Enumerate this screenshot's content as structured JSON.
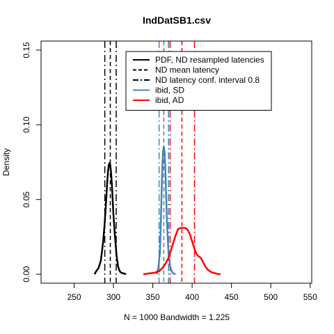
{
  "chart_data": {
    "type": "line",
    "title": "IndDatSB1.csv",
    "xlabel": "N = 1000   Bandwidth = 1.225",
    "ylabel": "Density",
    "xlim": [
      208,
      552
    ],
    "ylim": [
      -0.006,
      0.156
    ],
    "x_ticks": [
      250,
      300,
      350,
      400,
      450,
      500,
      550
    ],
    "x_tick_labels": [
      "250",
      "300",
      "350",
      "400",
      "450",
      "500",
      "550"
    ],
    "y_ticks": [
      0.0,
      0.05,
      0.1,
      0.15
    ],
    "y_tick_labels": [
      "0.00",
      "0.05",
      "0.10",
      "0.15"
    ],
    "legend": {
      "placement": "top-center",
      "entries": [
        {
          "label": "PDF, ND resampled latencies",
          "color": "#000000",
          "style": "solid"
        },
        {
          "label": "ND mean latency",
          "color": "#000000",
          "style": "dashed"
        },
        {
          "label": "ND latency conf. interval 0.8",
          "color": "#000000",
          "style": "dashdot"
        },
        {
          "label": "ibid, SD",
          "color": "#4682b4",
          "style": "solid"
        },
        {
          "label": "ibid, AD",
          "color": "#ff0000",
          "style": "solid"
        }
      ]
    },
    "series": [
      {
        "color": "#000000",
        "x": [
          276,
          278,
          281,
          284,
          287,
          289,
          291,
          292,
          293,
          294,
          295,
          296,
          297,
          298,
          299,
          300,
          302,
          304,
          306,
          308,
          310,
          313,
          316
        ],
        "y": [
          0.0,
          0.002,
          0.004,
          0.009,
          0.022,
          0.035,
          0.052,
          0.061,
          0.068,
          0.073,
          0.0745,
          0.073,
          0.068,
          0.06,
          0.05,
          0.04,
          0.025,
          0.012,
          0.005,
          0.002,
          0.001,
          0.0005,
          0.0
        ]
      },
      {
        "color": "#4682b4",
        "x": [
          355,
          357,
          359,
          360,
          361,
          362,
          363,
          364,
          365,
          366,
          367,
          368,
          370,
          372,
          374,
          376,
          379
        ],
        "y": [
          0.0,
          0.004,
          0.014,
          0.03,
          0.05,
          0.07,
          0.082,
          0.0855,
          0.082,
          0.07,
          0.052,
          0.035,
          0.014,
          0.005,
          0.002,
          0.0005,
          0.0
        ]
      },
      {
        "color": "#ff0000",
        "x": [
          338,
          345,
          352,
          358,
          362,
          366,
          370,
          373,
          376,
          379,
          382,
          385,
          388,
          391,
          394,
          397,
          400,
          403,
          405,
          408,
          411,
          414,
          417,
          420,
          424,
          428,
          432,
          436
        ],
        "y": [
          0.0,
          0.0005,
          0.001,
          0.002,
          0.004,
          0.007,
          0.011,
          0.016,
          0.021,
          0.026,
          0.03,
          0.031,
          0.031,
          0.031,
          0.03,
          0.027,
          0.022,
          0.017,
          0.014,
          0.012,
          0.011,
          0.008,
          0.005,
          0.003,
          0.0015,
          0.0008,
          0.0003,
          0.0
        ]
      }
    ],
    "vlines": [
      {
        "x": 296,
        "color": "#000000",
        "style": "dashed"
      },
      {
        "x": 289,
        "color": "#000000",
        "style": "dashdot"
      },
      {
        "x": 303.5,
        "color": "#000000",
        "style": "dashdot"
      },
      {
        "x": 364,
        "color": "#4682b4",
        "style": "dashed"
      },
      {
        "x": 358,
        "color": "#4682b4",
        "style": "dashdot"
      },
      {
        "x": 370,
        "color": "#4682b4",
        "style": "dashdot"
      },
      {
        "x": 387,
        "color": "#ff0000",
        "style": "dashed"
      },
      {
        "x": 372,
        "color": "#ff0000",
        "style": "dashdot"
      },
      {
        "x": 403,
        "color": "#ff0000",
        "style": "dashdot"
      }
    ]
  }
}
